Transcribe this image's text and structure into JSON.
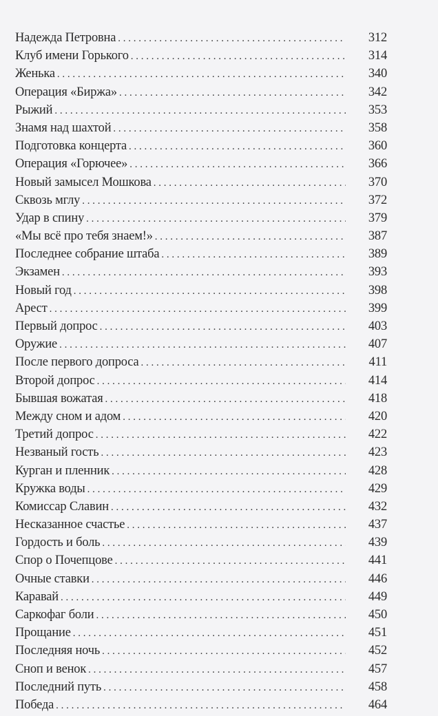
{
  "toc": [
    {
      "title": "Надежда Петровна",
      "page": "312"
    },
    {
      "title": "Клуб имени Горького",
      "page": "314"
    },
    {
      "title": "Женька",
      "page": "340"
    },
    {
      "title": "Операция «Биржа»",
      "page": "342"
    },
    {
      "title": "Рыжий",
      "page": "353"
    },
    {
      "title": "Знамя над шахтой",
      "page": "358"
    },
    {
      "title": "Подготовка концерта",
      "page": "360"
    },
    {
      "title": "Операция «Горючее»",
      "page": "366"
    },
    {
      "title": "Новый замысел Мошкова",
      "page": "370"
    },
    {
      "title": "Сквозь мглу",
      "page": "372"
    },
    {
      "title": "Удар в спину",
      "page": "379"
    },
    {
      "title": "«Мы всё про тебя знаем!»",
      "page": "387"
    },
    {
      "title": "Последнее собрание штаба",
      "page": "389"
    },
    {
      "title": "Экзамен",
      "page": "393"
    },
    {
      "title": "Новый год",
      "page": "398"
    },
    {
      "title": "Арест",
      "page": "399"
    },
    {
      "title": "Первый допрос",
      "page": "403"
    },
    {
      "title": "Оружие",
      "page": "407"
    },
    {
      "title": "После первого допроса",
      "page": "411"
    },
    {
      "title": "Второй допрос",
      "page": "414"
    },
    {
      "title": "Бывшая вожатая",
      "page": "418"
    },
    {
      "title": "Между сном и адом",
      "page": "420"
    },
    {
      "title": "Третий допрос",
      "page": "422"
    },
    {
      "title": "Незваный гость",
      "page": "423"
    },
    {
      "title": "Курган и пленник",
      "page": "428"
    },
    {
      "title": "Кружка воды",
      "page": "429"
    },
    {
      "title": "Комиссар Славин",
      "page": "432"
    },
    {
      "title": "Несказанное счастье",
      "page": "437"
    },
    {
      "title": "Гордость и боль",
      "page": "439"
    },
    {
      "title": "Спор о Почепцове",
      "page": "441"
    },
    {
      "title": "Очные ставки",
      "page": "446"
    },
    {
      "title": "Каравай",
      "page": "449"
    },
    {
      "title": "Саркофаг боли",
      "page": "450"
    },
    {
      "title": "Прощание",
      "page": "451"
    },
    {
      "title": "Последняя ночь",
      "page": "452"
    },
    {
      "title": "Сноп и венок",
      "page": "457"
    },
    {
      "title": "Последний путь",
      "page": "458"
    },
    {
      "title": "Победа",
      "page": "464"
    }
  ]
}
